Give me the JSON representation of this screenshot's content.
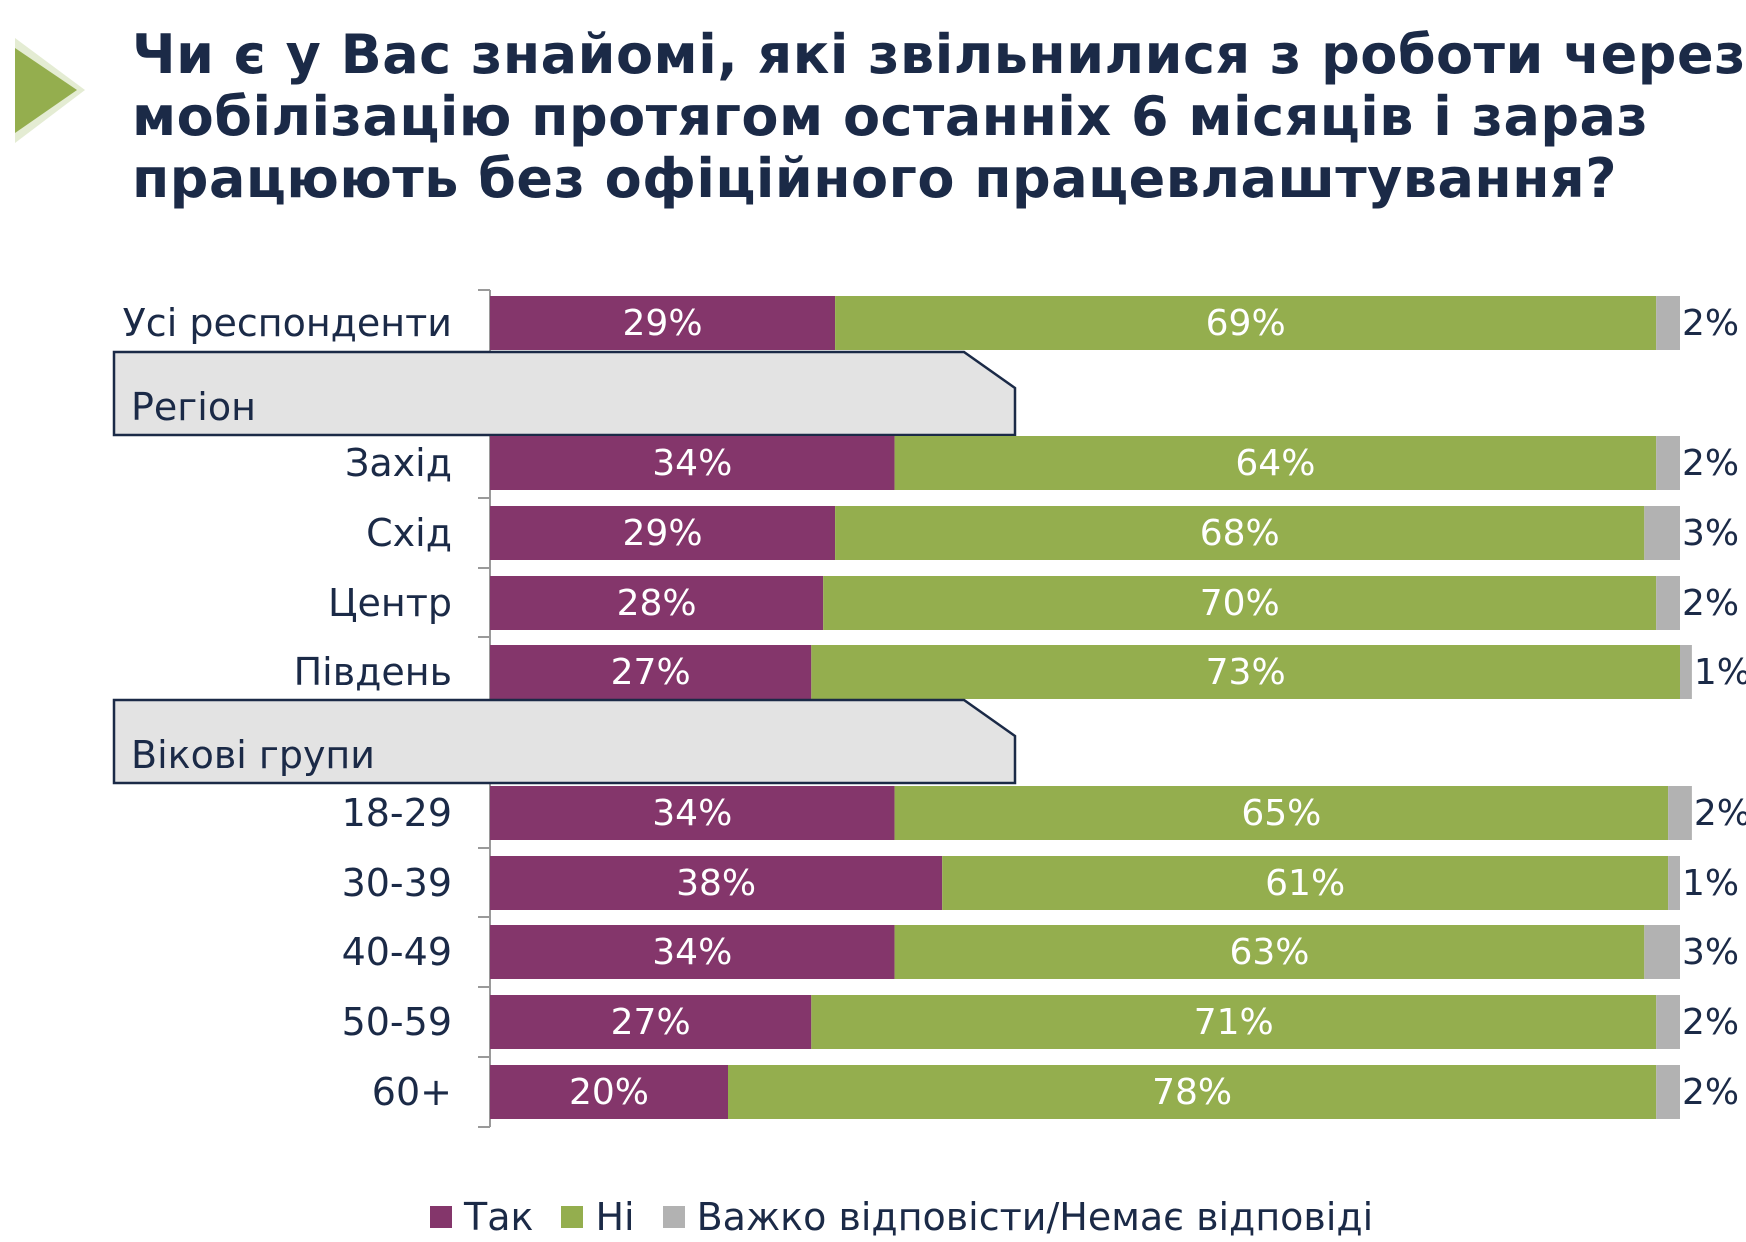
{
  "title_lines": [
    "Чи є у Вас знайомі, які звільнилися з роботи через",
    "мобілізацію протягом останніх 6 місяців і зараз",
    "працюють без офіційного працевлаштування?"
  ],
  "colors": {
    "yes": "#84366b",
    "no": "#94ae4e",
    "dk": "#b2b2b2",
    "text": "#1b2a47",
    "accent": "#94ae4e"
  },
  "icons": {
    "header": "play-arrow-icon"
  },
  "chart_data": {
    "type": "bar",
    "orientation": "horizontal",
    "stacked": true,
    "xlim": [
      0,
      100
    ],
    "series": [
      {
        "name": "Так",
        "key": "yes"
      },
      {
        "name": "Ні",
        "key": "no"
      },
      {
        "name": "Важко відповісти/Немає відповіді",
        "key": "dk"
      }
    ],
    "rows": [
      {
        "kind": "bar",
        "label": "Усі респонденти",
        "values": [
          29,
          69,
          2
        ],
        "labels": [
          "29%",
          "69%",
          "2%"
        ]
      },
      {
        "kind": "group",
        "label": "Регіон"
      },
      {
        "kind": "bar",
        "label": "Захід",
        "values": [
          34,
          64,
          2
        ],
        "labels": [
          "34%",
          "64%",
          "2%"
        ]
      },
      {
        "kind": "bar",
        "label": "Схід",
        "values": [
          29,
          68,
          3
        ],
        "labels": [
          "29%",
          "68%",
          "3%"
        ]
      },
      {
        "kind": "bar",
        "label": "Центр",
        "values": [
          28,
          70,
          2
        ],
        "labels": [
          "28%",
          "70%",
          "2%"
        ]
      },
      {
        "kind": "bar",
        "label": "Південь",
        "values": [
          27,
          73,
          1
        ],
        "labels": [
          "27%",
          "73%",
          "1%"
        ]
      },
      {
        "kind": "group",
        "label": "Вікові групи"
      },
      {
        "kind": "bar",
        "label": "18-29",
        "values": [
          34,
          65,
          2
        ],
        "labels": [
          "34%",
          "65%",
          "2%"
        ]
      },
      {
        "kind": "bar",
        "label": "30-39",
        "values": [
          38,
          61,
          1
        ],
        "labels": [
          "38%",
          "61%",
          "1%"
        ]
      },
      {
        "kind": "bar",
        "label": "40-49",
        "values": [
          34,
          63,
          3
        ],
        "labels": [
          "34%",
          "63%",
          "3%"
        ]
      },
      {
        "kind": "bar",
        "label": "50-59",
        "values": [
          27,
          71,
          2
        ],
        "labels": [
          "27%",
          "71%",
          "2%"
        ]
      },
      {
        "kind": "bar",
        "label": "60+",
        "values": [
          20,
          78,
          2
        ],
        "labels": [
          "20%",
          "78%",
          "2%"
        ]
      }
    ]
  }
}
